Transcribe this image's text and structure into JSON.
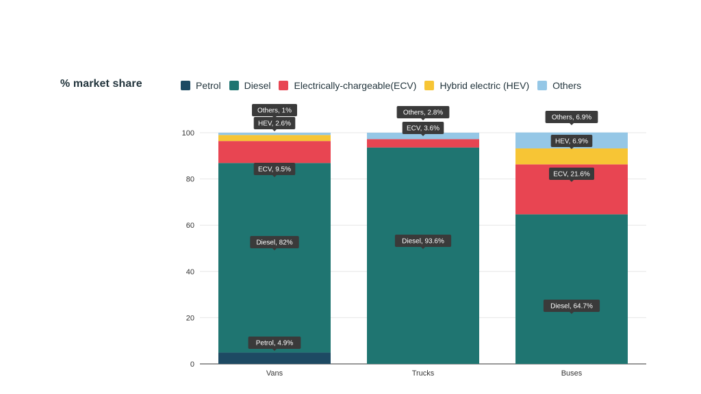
{
  "chart_data": {
    "type": "bar",
    "stacked": true,
    "ylabel": "% market share",
    "categories": [
      "Vans",
      "Trucks",
      "Buses"
    ],
    "ylim": [
      0,
      100
    ],
    "yticks": [
      0,
      20,
      40,
      60,
      80,
      100
    ],
    "grid": true,
    "legend_position": "top",
    "series": [
      {
        "name": "Petrol",
        "color": "#1d4a63",
        "values": [
          4.9,
          0,
          0
        ]
      },
      {
        "name": "Diesel",
        "color": "#1f7571",
        "values": [
          82,
          93.6,
          64.7
        ]
      },
      {
        "name": "Electrically-chargeable(ECV)",
        "color": "#e84552",
        "values": [
          9.5,
          3.6,
          21.6
        ]
      },
      {
        "name": "Hybrid electric (HEV)",
        "color": "#f7c535",
        "values": [
          2.6,
          0,
          6.9
        ]
      },
      {
        "name": "Others",
        "color": "#95c7e6",
        "values": [
          1,
          2.8,
          6.9
        ]
      }
    ],
    "data_labels": [
      [
        "Petrol, 4.9%",
        "",
        ""
      ],
      [
        "Diesel, 82%",
        "Diesel, 93.6%",
        "Diesel, 64.7%"
      ],
      [
        "ECV, 9.5%",
        "ECV, 3.6%",
        "ECV, 21.6%"
      ],
      [
        "HEV, 2.6%",
        "",
        "HEV, 6.9%"
      ],
      [
        "Others, 1%",
        "Others, 2.8%",
        "Others, 6.9%"
      ]
    ]
  }
}
